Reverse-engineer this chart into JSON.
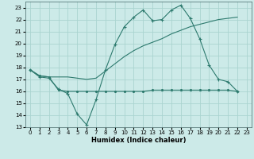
{
  "xlabel": "Humidex (Indice chaleur)",
  "bg_color": "#cceae8",
  "grid_color": "#aad4d0",
  "line_color": "#2d7a6e",
  "xlim": [
    -0.5,
    23.5
  ],
  "ylim": [
    13,
    23.5
  ],
  "yticks": [
    13,
    14,
    15,
    16,
    17,
    18,
    19,
    20,
    21,
    22,
    23
  ],
  "xticks": [
    0,
    1,
    2,
    3,
    4,
    5,
    6,
    7,
    8,
    9,
    10,
    11,
    12,
    13,
    14,
    15,
    16,
    17,
    18,
    19,
    20,
    21,
    22,
    23
  ],
  "line1_x": [
    0,
    1,
    2,
    3,
    4,
    5,
    6,
    7,
    8,
    9,
    10,
    11,
    12,
    13,
    14,
    15,
    16,
    17,
    18,
    19,
    20,
    21,
    22,
    23
  ],
  "line1_y": [
    17.8,
    17.2,
    17.1,
    16.2,
    15.8,
    14.1,
    13.2,
    15.3,
    17.8,
    19.9,
    21.4,
    22.2,
    22.8,
    21.9,
    22.0,
    22.8,
    23.2,
    22.1,
    20.4,
    18.2,
    17.0,
    16.8,
    16.0,
    null
  ],
  "line2_x": [
    0,
    1,
    2,
    3,
    4,
    5,
    6,
    7,
    8,
    9,
    10,
    11,
    12,
    13,
    14,
    15,
    16,
    17,
    18,
    19,
    20,
    21,
    22,
    23
  ],
  "line2_y": [
    17.8,
    17.3,
    17.2,
    17.2,
    17.2,
    17.1,
    17.0,
    17.1,
    17.7,
    18.3,
    18.9,
    19.4,
    19.8,
    20.1,
    20.4,
    20.8,
    21.1,
    21.4,
    21.6,
    21.8,
    22.0,
    22.1,
    22.2,
    null
  ],
  "line3_x": [
    0,
    1,
    2,
    3,
    4,
    5,
    6,
    7,
    8,
    9,
    10,
    11,
    12,
    13,
    14,
    15,
    16,
    17,
    18,
    19,
    20,
    21,
    22,
    23
  ],
  "line3_y": [
    17.8,
    17.3,
    17.2,
    16.1,
    16.0,
    16.0,
    16.0,
    16.0,
    16.0,
    16.0,
    16.0,
    16.0,
    16.0,
    16.1,
    16.1,
    16.1,
    16.1,
    16.1,
    16.1,
    16.1,
    16.1,
    16.1,
    16.0,
    null
  ],
  "tick_fontsize": 5,
  "xlabel_fontsize": 6,
  "lw": 0.8,
  "ms": 2.5
}
